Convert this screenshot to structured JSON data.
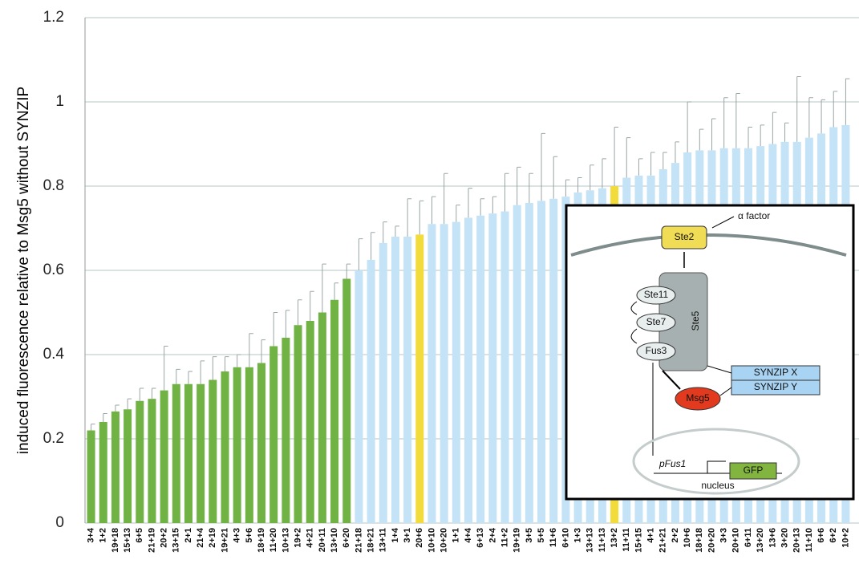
{
  "chart_data": {
    "type": "bar",
    "y_label": "induced fluorescence relative to Msg5 without SYNZIP",
    "categories": [
      "3+4",
      "1+2",
      "19+18",
      "15+13",
      "6+5",
      "21+19",
      "20+2",
      "13+15",
      "2+1",
      "21+4",
      "2+19",
      "19+21",
      "4+3",
      "5+6",
      "18+19",
      "11+20",
      "10+13",
      "19+2",
      "4+21",
      "20+11",
      "13+10",
      "6+20",
      "21+18",
      "18+21",
      "13+11",
      "1+4",
      "3+1",
      "20+6",
      "10+10",
      "10+20",
      "1+1",
      "4+4",
      "6+13",
      "2+4",
      "11+2",
      "19+19",
      "3+5",
      "5+5",
      "11+6",
      "6+10",
      "1+3",
      "13+13",
      "11+13",
      "13+2",
      "11+11",
      "15+15",
      "4+1",
      "21+21",
      "2+2",
      "10+6",
      "18+18",
      "20+20",
      "3+3",
      "20+10",
      "6+11",
      "13+20",
      "13+6",
      "3+20",
      "20+13",
      "11+10",
      "6+6",
      "6+2",
      "10+2"
    ],
    "values": [
      0.22,
      0.24,
      0.265,
      0.27,
      0.29,
      0.295,
      0.315,
      0.33,
      0.33,
      0.33,
      0.34,
      0.36,
      0.37,
      0.37,
      0.38,
      0.42,
      0.44,
      0.47,
      0.48,
      0.5,
      0.53,
      0.58,
      0.6,
      0.625,
      0.665,
      0.68,
      0.68,
      0.685,
      0.71,
      0.71,
      0.715,
      0.725,
      0.73,
      0.735,
      0.74,
      0.755,
      0.76,
      0.765,
      0.77,
      0.775,
      0.785,
      0.79,
      0.795,
      0.8,
      0.82,
      0.825,
      0.825,
      0.84,
      0.855,
      0.88,
      0.885,
      0.885,
      0.89,
      0.89,
      0.89,
      0.895,
      0.9,
      0.905,
      0.905,
      0.915,
      0.925,
      0.94,
      0.945
    ],
    "errors": [
      0.015,
      0.02,
      0.015,
      0.025,
      0.03,
      0.025,
      0.105,
      0.035,
      0.03,
      0.055,
      0.055,
      0.035,
      0.03,
      0.08,
      0.055,
      0.08,
      0.065,
      0.06,
      0.07,
      0.115,
      0.04,
      0.035,
      0.075,
      0.065,
      0.05,
      0.025,
      0.09,
      0.08,
      0.065,
      0.12,
      0.04,
      0.07,
      0.04,
      0.04,
      0.09,
      0.09,
      0.07,
      0.16,
      0.1,
      0.04,
      0.035,
      0.06,
      0.07,
      0.14,
      0.095,
      0.04,
      0.055,
      0.04,
      0.05,
      0.12,
      0.05,
      0.075,
      0.12,
      0.13,
      0.05,
      0.05,
      0.075,
      0.045,
      0.155,
      0.095,
      0.08,
      0.085,
      0.11
    ],
    "bar_colors": [
      "#70b244",
      "#70b244",
      "#70b244",
      "#70b244",
      "#70b244",
      "#70b244",
      "#70b244",
      "#70b244",
      "#70b244",
      "#70b244",
      "#70b244",
      "#70b244",
      "#70b244",
      "#70b244",
      "#70b244",
      "#70b244",
      "#70b244",
      "#70b244",
      "#70b244",
      "#70b244",
      "#70b244",
      "#70b244",
      "#c5e3f7",
      "#c5e3f7",
      "#c5e3f7",
      "#c5e3f7",
      "#c5e3f7",
      "#f2dc3c",
      "#c5e3f7",
      "#c5e3f7",
      "#c5e3f7",
      "#c5e3f7",
      "#c5e3f7",
      "#c5e3f7",
      "#c5e3f7",
      "#c5e3f7",
      "#c5e3f7",
      "#c5e3f7",
      "#c5e3f7",
      "#c5e3f7",
      "#c5e3f7",
      "#c5e3f7",
      "#c5e3f7",
      "#f2dc3c",
      "#c5e3f7",
      "#c5e3f7",
      "#c5e3f7",
      "#c5e3f7",
      "#c5e3f7",
      "#c5e3f7",
      "#c5e3f7",
      "#c5e3f7",
      "#c5e3f7",
      "#c5e3f7",
      "#c5e3f7",
      "#c5e3f7",
      "#c5e3f7",
      "#c5e3f7",
      "#c5e3f7",
      "#c5e3f7",
      "#c5e3f7",
      "#c5e3f7",
      "#c5e3f7"
    ],
    "error_color": "#9aa5a5",
    "ylim": [
      0,
      1.2
    ],
    "yticks": [
      0,
      0.2,
      0.4,
      0.6,
      0.8,
      1,
      1.2
    ],
    "grid": true
  },
  "inset": {
    "alpha": "α factor",
    "ste2": "Ste2",
    "ste11": "Ste11",
    "ste7": "Ste7",
    "ste5": "Ste5",
    "fus3": "Fus3",
    "synzip_x": "SYNZIP X",
    "synzip_y": "SYNZIP Y",
    "msg5": "Msg5",
    "promoter": "pFus1",
    "gfp": "GFP",
    "nucleus": "nucleus"
  }
}
